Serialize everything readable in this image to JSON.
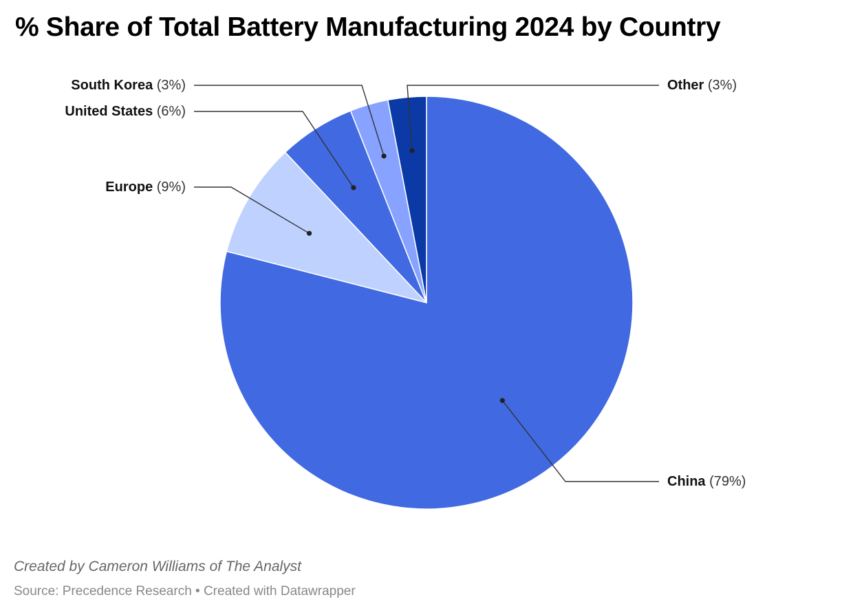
{
  "chart_data": {
    "type": "pie",
    "title": "% Share of Total Battery Manufacturing 2024 by Country",
    "categories": [
      "China",
      "Europe",
      "United States",
      "South Korea",
      "Other"
    ],
    "values": [
      79,
      9,
      6,
      3,
      3
    ],
    "value_labels": [
      "(79%)",
      "(9%)",
      "(6%)",
      "(3%)",
      "(3%)"
    ],
    "colors": [
      "#4169e1",
      "#bfd2ff",
      "#4169e1",
      "#87a2ff",
      "#0b3aa6"
    ],
    "unit": "%"
  },
  "footer": {
    "credit": "Created by Cameron Williams of The Analyst",
    "source": "Source: Precedence Research • Created with Datawrapper"
  }
}
